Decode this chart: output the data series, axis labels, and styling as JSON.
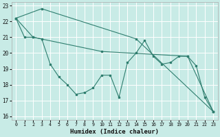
{
  "xlabel": "Humidex (Indice chaleur)",
  "xlim": [
    -0.5,
    23.5
  ],
  "ylim": [
    15.8,
    23.2
  ],
  "yticks": [
    16,
    17,
    18,
    19,
    20,
    21,
    22,
    23
  ],
  "xticks": [
    0,
    1,
    2,
    3,
    4,
    5,
    6,
    7,
    8,
    9,
    10,
    11,
    12,
    13,
    14,
    15,
    16,
    17,
    18,
    19,
    20,
    21,
    22,
    23
  ],
  "bg_color": "#c8ebe6",
  "grid_color": "#b0ddd7",
  "line_color": "#2e7d6e",
  "line1_x": [
    0,
    1,
    2,
    3,
    4,
    5,
    6,
    7,
    8,
    9,
    10,
    11,
    12,
    13,
    14,
    15,
    16,
    17,
    18,
    19,
    20,
    21,
    22,
    23
  ],
  "line1_y": [
    22.2,
    21.0,
    21.0,
    20.9,
    19.3,
    18.5,
    18.0,
    17.4,
    17.5,
    17.8,
    18.6,
    18.6,
    17.2,
    19.4,
    20.0,
    20.8,
    19.8,
    19.3,
    19.4,
    19.8,
    19.8,
    19.2,
    17.2,
    16.3
  ],
  "line2_x": [
    0,
    3,
    14,
    23
  ],
  "line2_y": [
    22.2,
    22.8,
    20.9,
    16.3
  ],
  "line3_x": [
    0,
    2,
    10,
    20,
    23
  ],
  "line3_y": [
    22.2,
    21.0,
    20.1,
    19.8,
    16.3
  ]
}
